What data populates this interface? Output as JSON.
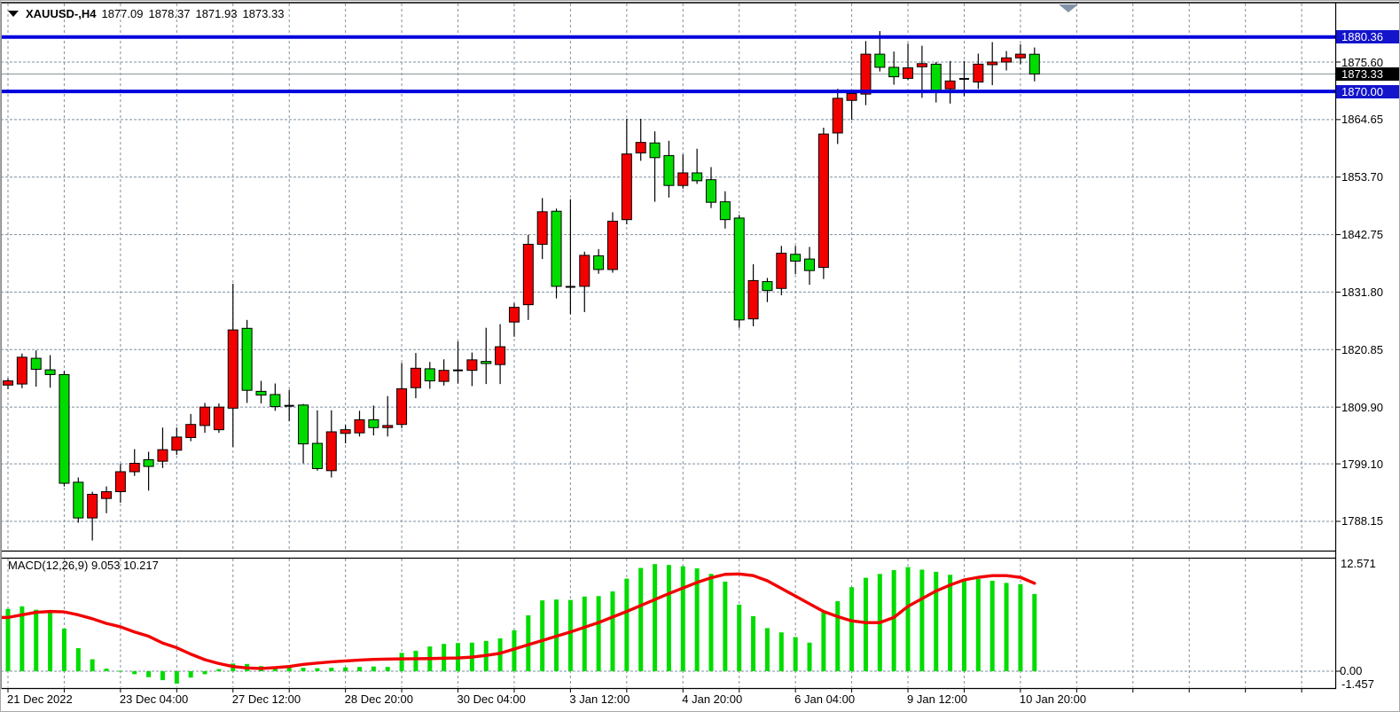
{
  "header": {
    "symbol_period": "XAUUSD-,H4",
    "open": "1877.09",
    "high": "1878.37",
    "low": "1871.93",
    "close": "1873.33"
  },
  "macd_label": {
    "name": "MACD(12,26,9)",
    "value": "9.053",
    "signal": "10.217"
  },
  "price_axis": {
    "tick_labels": [
      "1875.60",
      "1864.65",
      "1853.70",
      "1842.75",
      "1831.80",
      "1820.85",
      "1809.90",
      "1799.10",
      "1788.15"
    ],
    "badges": [
      {
        "text": "1880.36",
        "type": "hline",
        "color": "#1414cc"
      },
      {
        "text": "1873.33",
        "type": "bid",
        "color": "#000000"
      },
      {
        "text": "1870.00",
        "type": "hline",
        "color": "#1414cc"
      }
    ]
  },
  "macd_axis": {
    "labels": [
      "12.571",
      "0.00",
      "-1.457"
    ]
  },
  "colors": {
    "bull": "#f20000",
    "bear": "#00dc00",
    "candle_border": "#000000",
    "wick": "#000000",
    "hline_blue": "#0000dd",
    "bid_line": "#90a0a0",
    "grid": "#7f90a0",
    "macd_histogram": "#00dc00",
    "macd_signal": "#f20000",
    "frame": "#000000",
    "marker": "#8292a8"
  },
  "chart_data": {
    "type": "candlestick",
    "title": "XAUUSD-,H4",
    "x_labels": [
      {
        "text": "21 Dec 2022",
        "i": 0
      },
      {
        "text": "23 Dec 04:00",
        "i": 8
      },
      {
        "text": "27 Dec 12:00",
        "i": 16
      },
      {
        "text": "28 Dec 20:00",
        "i": 24
      },
      {
        "text": "30 Dec 04:00",
        "i": 32
      },
      {
        "text": "3 Jan 12:00",
        "i": 40
      },
      {
        "text": "4 Jan 20:00",
        "i": 48
      },
      {
        "text": "6 Jan 04:00",
        "i": 56
      },
      {
        "text": "9 Jan 12:00",
        "i": 64
      },
      {
        "text": "10 Jan 20:00",
        "i": 72
      }
    ],
    "panes": [
      {
        "type": "candlestick",
        "ylim": [
          1782.4,
          1886.9
        ],
        "grid_prices": [
          1875.6,
          1864.65,
          1853.7,
          1842.75,
          1831.8,
          1820.85,
          1809.9,
          1799.1,
          1788.15
        ],
        "hlines": [
          1880.36,
          1870.0
        ],
        "bid_price": 1873.33,
        "note": "candles as [open,high,low,close]; this chart colors up-candles red and down-candles lime",
        "candles": [
          [
            1814.1,
            1815.4,
            1813.3,
            1814.9
          ],
          [
            1814.3,
            1820.1,
            1813.5,
            1819.4
          ],
          [
            1819.2,
            1820.7,
            1813.8,
            1817.1
          ],
          [
            1817.0,
            1819.8,
            1813.6,
            1816.1
          ],
          [
            1816.1,
            1816.8,
            1794.8,
            1795.4
          ],
          [
            1795.6,
            1796.5,
            1787.9,
            1788.8
          ],
          [
            1788.8,
            1793.8,
            1784.5,
            1793.3
          ],
          [
            1792.5,
            1794.8,
            1789.7,
            1793.8
          ],
          [
            1793.8,
            1799.1,
            1791.7,
            1797.6
          ],
          [
            1797.6,
            1801.9,
            1796.8,
            1799.2
          ],
          [
            1799.9,
            1801.4,
            1794.0,
            1798.6
          ],
          [
            1799.6,
            1806.0,
            1798.3,
            1801.8
          ],
          [
            1801.7,
            1806.0,
            1800.8,
            1804.2
          ],
          [
            1804.1,
            1808.6,
            1803.4,
            1806.6
          ],
          [
            1806.4,
            1810.7,
            1805.0,
            1809.9
          ],
          [
            1805.6,
            1810.6,
            1805.0,
            1809.9
          ],
          [
            1809.7,
            1833.4,
            1802.3,
            1824.6
          ],
          [
            1824.9,
            1826.5,
            1810.7,
            1813.1
          ],
          [
            1812.9,
            1814.9,
            1810.6,
            1812.2
          ],
          [
            1812.3,
            1814.4,
            1809.2,
            1810.0
          ],
          [
            1810.15,
            1813.2,
            1807.2,
            1810.15
          ],
          [
            1810.3,
            1810.5,
            1799.2,
            1802.9
          ],
          [
            1803.0,
            1809.3,
            1797.8,
            1798.2
          ],
          [
            1797.8,
            1809.3,
            1796.5,
            1805.2
          ],
          [
            1804.9,
            1806.5,
            1803.0,
            1805.6
          ],
          [
            1805.0,
            1809.2,
            1804.3,
            1807.5
          ],
          [
            1807.5,
            1810.2,
            1804.5,
            1806.0
          ],
          [
            1806.0,
            1812.0,
            1804.3,
            1806.4
          ],
          [
            1806.6,
            1818.3,
            1805.9,
            1813.4
          ],
          [
            1813.6,
            1820.2,
            1811.6,
            1817.3
          ],
          [
            1817.2,
            1818.5,
            1813.4,
            1814.9
          ],
          [
            1814.8,
            1819.0,
            1814.0,
            1816.9
          ],
          [
            1816.9,
            1822.4,
            1814.4,
            1816.9
          ],
          [
            1816.9,
            1820.3,
            1813.9,
            1818.9
          ],
          [
            1818.6,
            1825.0,
            1814.3,
            1818.2
          ],
          [
            1818.0,
            1825.7,
            1814.3,
            1821.4
          ],
          [
            1826.1,
            1829.7,
            1823.3,
            1828.9
          ],
          [
            1829.4,
            1842.7,
            1826.5,
            1840.9
          ],
          [
            1840.9,
            1849.7,
            1838.1,
            1847.1
          ],
          [
            1847.2,
            1847.7,
            1830.6,
            1832.9
          ],
          [
            1832.8,
            1849.5,
            1827.6,
            1832.8
          ],
          [
            1832.9,
            1839.5,
            1828.0,
            1838.8
          ],
          [
            1838.7,
            1840.0,
            1835.3,
            1836.1
          ],
          [
            1836.1,
            1847.0,
            1835.5,
            1845.3
          ],
          [
            1845.6,
            1864.8,
            1844.7,
            1858.1
          ],
          [
            1858.3,
            1864.8,
            1856.8,
            1860.3
          ],
          [
            1860.2,
            1862.4,
            1849.0,
            1857.4
          ],
          [
            1857.8,
            1860.6,
            1849.8,
            1852.1
          ],
          [
            1852.1,
            1858.0,
            1851.5,
            1854.5
          ],
          [
            1854.5,
            1859.1,
            1852.4,
            1853.0
          ],
          [
            1853.2,
            1855.6,
            1847.8,
            1848.9
          ],
          [
            1849.0,
            1851.0,
            1843.9,
            1845.6
          ],
          [
            1845.9,
            1846.5,
            1825.0,
            1826.5
          ],
          [
            1826.7,
            1837.1,
            1825.3,
            1834.0
          ],
          [
            1833.8,
            1834.5,
            1829.9,
            1832.1
          ],
          [
            1832.5,
            1840.6,
            1831.2,
            1839.2
          ],
          [
            1839.0,
            1840.6,
            1835.2,
            1837.7
          ],
          [
            1838.1,
            1840.4,
            1833.2,
            1835.9
          ],
          [
            1836.5,
            1863.1,
            1834.3,
            1861.9
          ],
          [
            1862.1,
            1870.5,
            1860.0,
            1868.7
          ],
          [
            1868.3,
            1870.3,
            1864.6,
            1869.6
          ],
          [
            1869.5,
            1879.6,
            1867.4,
            1877.1
          ],
          [
            1877.1,
            1881.5,
            1873.8,
            1874.6
          ],
          [
            1874.6,
            1877.6,
            1871.3,
            1872.8
          ],
          [
            1872.5,
            1879.1,
            1872.2,
            1874.5
          ],
          [
            1874.7,
            1878.7,
            1868.8,
            1875.3
          ],
          [
            1875.2,
            1875.6,
            1867.9,
            1870.0
          ],
          [
            1870.5,
            1875.8,
            1867.7,
            1872.0
          ],
          [
            1872.4,
            1875.8,
            1869.1,
            1872.4
          ],
          [
            1871.8,
            1877.2,
            1870.5,
            1875.2
          ],
          [
            1875.1,
            1879.4,
            1871.2,
            1875.6
          ],
          [
            1875.6,
            1877.7,
            1874.0,
            1876.4
          ],
          [
            1876.4,
            1879.0,
            1875.2,
            1877.1
          ],
          [
            1877.09,
            1878.37,
            1871.93,
            1873.33
          ]
        ]
      },
      {
        "type": "macd",
        "params": [
          12,
          26,
          9
        ],
        "current_macd": 9.053,
        "current_signal": 10.217,
        "ylim": [
          -1.97,
          13.3
        ],
        "scale_values": [
          12.571,
          0.0,
          -1.457
        ],
        "histogram": [
          7.3,
          7.6,
          7.2,
          7.0,
          5.0,
          2.7,
          1.4,
          0.3,
          0.05,
          -0.35,
          -0.7,
          -1.05,
          -1.457,
          -0.75,
          -0.35,
          0.25,
          0.9,
          0.85,
          0.6,
          0.5,
          0.45,
          0.4,
          0.35,
          0.4,
          0.45,
          0.5,
          0.55,
          0.5,
          2.15,
          2.4,
          2.9,
          3.2,
          3.3,
          3.35,
          3.55,
          3.85,
          4.8,
          6.55,
          8.3,
          8.4,
          8.35,
          8.75,
          8.8,
          9.35,
          10.85,
          12.1,
          12.55,
          12.45,
          12.3,
          12.05,
          11.4,
          10.5,
          7.8,
          6.45,
          5.05,
          4.55,
          4.0,
          3.35,
          6.9,
          8.2,
          9.85,
          10.95,
          11.4,
          11.85,
          12.2,
          11.9,
          11.65,
          11.3,
          10.7,
          10.8,
          10.6,
          10.35,
          10.2,
          9.053
        ],
        "signal": [
          6.3,
          6.6,
          6.9,
          7.0,
          6.95,
          6.6,
          6.15,
          5.6,
          5.2,
          4.6,
          4.1,
          3.3,
          2.75,
          2.0,
          1.35,
          0.9,
          0.55,
          0.38,
          0.32,
          0.42,
          0.55,
          0.8,
          0.95,
          1.1,
          1.2,
          1.3,
          1.38,
          1.42,
          1.45,
          1.46,
          1.48,
          1.52,
          1.55,
          1.65,
          1.85,
          2.1,
          2.6,
          3.1,
          3.6,
          4.1,
          4.6,
          5.15,
          5.7,
          6.35,
          7.0,
          7.7,
          8.4,
          9.1,
          9.75,
          10.4,
          10.95,
          11.35,
          11.4,
          11.2,
          10.6,
          9.7,
          8.8,
          7.9,
          7.0,
          6.4,
          5.9,
          5.7,
          5.7,
          6.3,
          7.6,
          8.5,
          9.4,
          10.1,
          10.7,
          11.0,
          11.2,
          11.2,
          11.0,
          10.3
        ]
      }
    ]
  }
}
